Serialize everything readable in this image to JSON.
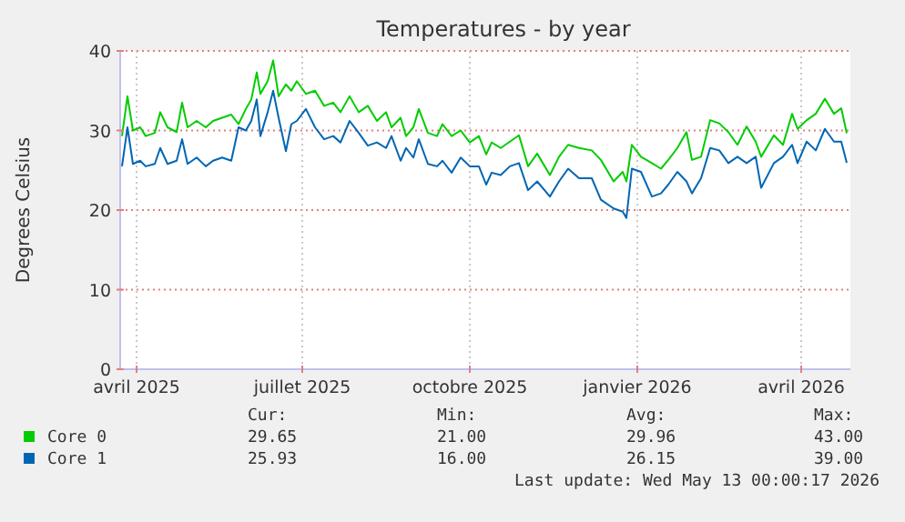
{
  "chart_data": {
    "type": "line",
    "title": "Temperatures - by year",
    "ylabel": "Degrees Celsius",
    "x": [
      "2025-03-24",
      "2025-03-27",
      "2025-03-30",
      "2025-04-03",
      "2025-04-06",
      "2025-04-11",
      "2025-04-14",
      "2025-04-18",
      "2025-04-23",
      "2025-04-26",
      "2025-04-29",
      "2025-05-04",
      "2025-05-09",
      "2025-05-13",
      "2025-05-18",
      "2025-05-23",
      "2025-05-27",
      "2025-05-31",
      "2025-06-03",
      "2025-06-06",
      "2025-06-08",
      "2025-06-12",
      "2025-06-15",
      "2025-06-18",
      "2025-06-22",
      "2025-06-25",
      "2025-06-28",
      "2025-07-03",
      "2025-07-08",
      "2025-07-13",
      "2025-07-18",
      "2025-07-22",
      "2025-07-27",
      "2025-08-01",
      "2025-08-06",
      "2025-08-11",
      "2025-08-16",
      "2025-08-19",
      "2025-08-24",
      "2025-08-27",
      "2025-08-31",
      "2025-09-03",
      "2025-09-08",
      "2025-09-13",
      "2025-09-16",
      "2025-09-21",
      "2025-09-26",
      "2025-10-01",
      "2025-10-06",
      "2025-10-10",
      "2025-10-13",
      "2025-10-18",
      "2025-10-23",
      "2025-10-28",
      "2025-11-02",
      "2025-11-07",
      "2025-11-14",
      "2025-11-19",
      "2025-11-24",
      "2025-11-30",
      "2025-12-07",
      "2025-12-12",
      "2025-12-19",
      "2025-12-24",
      "2025-12-26",
      "2025-12-29",
      "2026-01-03",
      "2026-01-09",
      "2026-01-14",
      "2026-01-18",
      "2026-01-23",
      "2026-01-28",
      "2026-01-31",
      "2026-02-05",
      "2026-02-10",
      "2026-02-15",
      "2026-02-20",
      "2026-02-25",
      "2026-03-02",
      "2026-03-07",
      "2026-03-10",
      "2026-03-17",
      "2026-03-22",
      "2026-03-27",
      "2026-03-30",
      "2026-04-04",
      "2026-04-09",
      "2026-04-14",
      "2026-04-19",
      "2026-04-23",
      "2026-04-26"
    ],
    "series": [
      {
        "name": "Core 0",
        "color": "#00cc00",
        "values": [
          29.3,
          34.3,
          30.0,
          30.4,
          29.3,
          29.7,
          32.3,
          30.4,
          29.8,
          33.5,
          30.4,
          31.2,
          30.4,
          31.2,
          31.6,
          32.0,
          30.8,
          32.7,
          33.9,
          37.3,
          34.6,
          36.2,
          38.8,
          34.3,
          35.8,
          35.0,
          36.2,
          34.6,
          35.0,
          33.1,
          33.5,
          32.3,
          34.3,
          32.3,
          33.1,
          31.2,
          32.3,
          30.4,
          31.6,
          29.3,
          30.4,
          32.7,
          29.7,
          29.3,
          30.8,
          29.3,
          30.0,
          28.5,
          29.3,
          27.0,
          28.5,
          27.8,
          28.6,
          29.4,
          25.5,
          27.1,
          24.4,
          26.7,
          28.2,
          27.8,
          27.5,
          26.3,
          23.6,
          24.8,
          23.6,
          28.2,
          26.7,
          25.9,
          25.2,
          26.3,
          27.8,
          29.8,
          26.3,
          26.7,
          31.3,
          30.9,
          29.8,
          28.2,
          30.5,
          28.6,
          26.7,
          29.4,
          28.2,
          32.1,
          30.2,
          31.3,
          32.1,
          34.0,
          32.1,
          32.8,
          29.65
        ]
      },
      {
        "name": "Core 1",
        "color": "#0066b3",
        "values": [
          25.5,
          30.4,
          25.8,
          26.2,
          25.5,
          25.8,
          27.8,
          25.8,
          26.2,
          28.9,
          25.8,
          26.6,
          25.5,
          26.2,
          26.6,
          26.2,
          30.4,
          30.0,
          31.2,
          33.9,
          29.3,
          32.3,
          35.0,
          31.6,
          27.4,
          30.8,
          31.2,
          32.7,
          30.4,
          28.9,
          29.3,
          28.5,
          31.2,
          29.7,
          28.1,
          28.5,
          27.8,
          29.3,
          26.2,
          27.8,
          26.6,
          28.9,
          25.8,
          25.5,
          26.2,
          24.7,
          26.6,
          25.5,
          25.5,
          23.2,
          24.7,
          24.4,
          25.5,
          25.9,
          22.5,
          23.6,
          21.7,
          23.6,
          25.2,
          24.0,
          24.0,
          21.3,
          20.2,
          19.8,
          19.0,
          25.2,
          24.8,
          21.7,
          22.1,
          23.2,
          24.8,
          23.6,
          22.1,
          24.0,
          27.8,
          27.5,
          25.9,
          26.7,
          25.9,
          26.7,
          22.8,
          25.9,
          26.7,
          28.2,
          25.9,
          28.6,
          27.5,
          30.2,
          28.6,
          28.6,
          25.93
        ]
      }
    ],
    "xlim": [
      "2025-03-23",
      "2026-04-28"
    ],
    "xticks": [
      {
        "value": "2025-04-01",
        "label": "avril 2025"
      },
      {
        "value": "2025-07-01",
        "label": "juillet 2025"
      },
      {
        "value": "2025-10-01",
        "label": "octobre 2025"
      },
      {
        "value": "2026-01-01",
        "label": "janvier 2026"
      },
      {
        "value": "2026-04-01",
        "label": "avril 2026"
      }
    ],
    "ylim": [
      0,
      40
    ],
    "yticks": [
      0,
      10,
      20,
      30,
      40
    ],
    "grid": true,
    "legend": "bottom",
    "marker": "none",
    "line_style": "solid",
    "annotations": [
      "Cur:",
      "Min:",
      "Avg:",
      "Max:",
      "29.65",
      "21.00",
      "29.96",
      "43.00",
      "25.93",
      "16.00",
      "26.15",
      "39.00",
      "Last update: Wed May 13 00:00:17 2026"
    ]
  }
}
